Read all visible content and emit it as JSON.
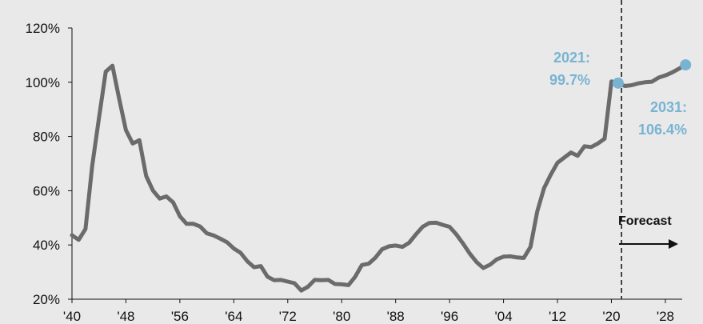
{
  "chart_data": {
    "type": "line",
    "title": "",
    "xlabel": "",
    "ylabel": "",
    "xlim": [
      1940,
      2032
    ],
    "ylim": [
      20,
      120
    ],
    "y_ticks": [
      20,
      40,
      60,
      80,
      100,
      120
    ],
    "y_tick_labels": [
      "20%",
      "40%",
      "60%",
      "80%",
      "100%",
      "120%"
    ],
    "x_ticks": [
      1940,
      1948,
      1956,
      1964,
      1972,
      1980,
      1988,
      1996,
      2004,
      2012,
      2020,
      2028
    ],
    "x_tick_labels": [
      "'40",
      "'48",
      "'56",
      "'64",
      "'72",
      "'80",
      "'88",
      "'96",
      "'04",
      "'12",
      "'20",
      "'28"
    ],
    "grid": false,
    "colors": {
      "line": "#6b6b6b",
      "highlight": "#78b4d2",
      "background": "#e9e9e9"
    },
    "series": [
      {
        "x": [
          1940,
          1941,
          1942,
          1943,
          1944,
          1945,
          1946,
          1947,
          1948,
          1949,
          1950,
          1951,
          1952,
          1953,
          1954,
          1955,
          1956,
          1957,
          1958,
          1959,
          1960,
          1961,
          1962,
          1963,
          1964,
          1965,
          1966,
          1967,
          1968,
          1969,
          1970,
          1971,
          1972,
          1973,
          1974,
          1975,
          1976,
          1977,
          1978,
          1979,
          1980,
          1981,
          1982,
          1983,
          1984,
          1985,
          1986,
          1987,
          1988,
          1989,
          1990,
          1991,
          1992,
          1993,
          1994,
          1995,
          1996,
          1997,
          1998,
          1999,
          2000,
          2001,
          2002,
          2003,
          2004,
          2005,
          2006,
          2007,
          2008,
          2009,
          2010,
          2011,
          2012,
          2013,
          2014,
          2015,
          2016,
          2017,
          2018,
          2019,
          2020,
          2021,
          2022,
          2023,
          2024,
          2025,
          2026,
          2027,
          2028,
          2029,
          2030,
          2031
        ],
        "values": [
          43.6,
          41.9,
          45.9,
          69.2,
          86.7,
          103.9,
          106.1,
          93.9,
          82.4,
          77.4,
          78.6,
          65.5,
          60.1,
          57.1,
          57.9,
          55.7,
          50.6,
          47.8,
          47.8,
          46.8,
          44.3,
          43.5,
          42.3,
          41.0,
          38.7,
          37.1,
          34.0,
          31.8,
          32.2,
          28.3,
          27.0,
          27.1,
          26.5,
          25.9,
          23.2,
          24.6,
          27.1,
          27.0,
          27.1,
          25.6,
          25.5,
          25.2,
          28.3,
          32.6,
          33.1,
          35.3,
          38.4,
          39.5,
          39.8,
          39.3,
          40.8,
          43.9,
          46.7,
          48.1,
          48.2,
          47.4,
          46.7,
          43.9,
          40.5,
          36.8,
          33.7,
          31.5,
          32.7,
          34.7,
          35.7,
          35.8,
          35.4,
          35.2,
          39.3,
          52.3,
          60.9,
          65.9,
          70.3,
          72.2,
          74.1,
          72.9,
          76.4,
          76.1,
          77.4,
          79.2,
          100.3,
          99.7,
          98.6,
          98.9,
          99.6,
          100.0,
          100.2,
          101.7,
          102.5,
          103.6,
          105.0,
          106.4
        ]
      }
    ],
    "forecast_start": 2021.5,
    "highlights": [
      {
        "x": 2021,
        "y": 99.7,
        "year": "2021:",
        "value": "99.7%"
      },
      {
        "x": 2031,
        "y": 106.4,
        "year": "2031:",
        "value": "106.4%"
      }
    ],
    "forecast_label": "Forecast"
  }
}
